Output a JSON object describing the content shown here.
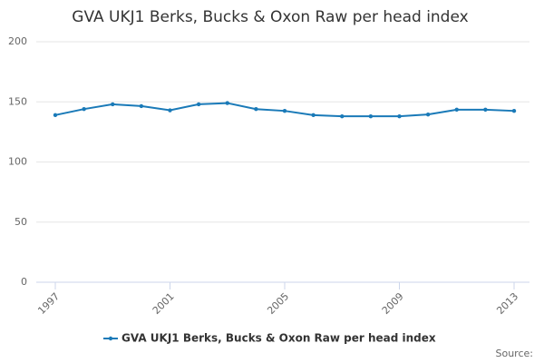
{
  "chart_data": {
    "type": "line",
    "title": "GVA UKJ1 Berks, Bucks & Oxon Raw per head index",
    "x": [
      1997,
      1998,
      1999,
      2000,
      2001,
      2002,
      2003,
      2004,
      2005,
      2006,
      2007,
      2008,
      2009,
      2010,
      2011,
      2012,
      2013
    ],
    "series": [
      {
        "name": "GVA UKJ1 Berks, Bucks & Oxon Raw per head index",
        "color": "#1a7ab8",
        "values": [
          139,
          144,
          148,
          146.5,
          143,
          148,
          149,
          144,
          142.5,
          139,
          138,
          138,
          138,
          139.5,
          143.5,
          143.5,
          142.5
        ]
      }
    ],
    "xlim": [
      1997,
      2013
    ],
    "xticks": [
      1997,
      2001,
      2005,
      2009,
      2013
    ],
    "ylim": [
      0,
      200
    ],
    "yticks": [
      0,
      50,
      100,
      150,
      200
    ],
    "grid": true,
    "source": "Source:"
  }
}
